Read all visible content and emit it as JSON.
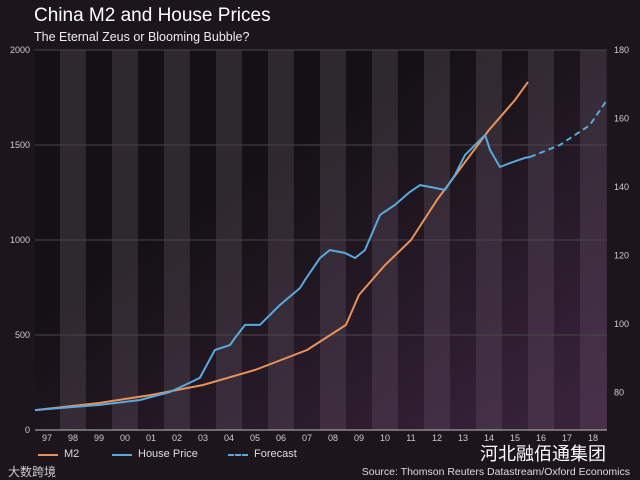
{
  "chart_data": {
    "type": "line",
    "title": "China M2 and House Prices",
    "subtitle": "The Eternal Zeus or Blooming Bubble?",
    "xlabel": "",
    "ylabel": "",
    "xlim": [
      1996.54,
      2018.54
    ],
    "ylim": [
      0,
      2000
    ],
    "y2lim": [
      69,
      180
    ],
    "x_ticks": [
      "97",
      "98",
      "99",
      "00",
      "01",
      "02",
      "03",
      "04",
      "05",
      "06",
      "07",
      "08",
      "09",
      "10",
      "11",
      "12",
      "13",
      "14",
      "15",
      "16",
      "17",
      "18"
    ],
    "y_ticks": [
      0,
      500,
      1000,
      1500,
      2000
    ],
    "y2_ticks": [
      80,
      100,
      120,
      140,
      160,
      180
    ],
    "grid": true,
    "legend_position": "bottom-left",
    "series": [
      {
        "name": "M2",
        "color": "#e8925a",
        "style": "solid",
        "x": [
          1996.54,
          1999,
          2001,
          2003,
          2005,
          2007,
          2008.5,
          2009,
          2010,
          2011,
          2012,
          2013,
          2014,
          2015,
          2015.5
        ],
        "y": [
          105,
          142,
          184,
          237,
          316,
          421,
          553,
          711,
          868,
          1000,
          1211,
          1395,
          1579,
          1737,
          1832
        ]
      },
      {
        "name": "House Price",
        "color": "#5aa9dc",
        "style": "solid",
        "x": [
          1996.54,
          1997.5,
          1999.04,
          2000.58,
          2001.73,
          2002.31,
          2002.88,
          2003.46,
          2004.04,
          2004.23,
          2004.62,
          2005.19,
          2005.96,
          2006.73,
          2006.92,
          2007.5,
          2007.88,
          2008.46,
          2008.85,
          2009.23,
          2009.81,
          2010.38,
          2010.96,
          2011.35,
          2011.92,
          2012.31,
          2012.69,
          2013.08,
          2013.65,
          2013.85,
          2014.04,
          2014.42,
          2014.81,
          2015.38,
          2015.58
        ],
        "y": [
          105,
          116,
          132,
          158,
          200,
          237,
          274,
          421,
          447,
          484,
          553,
          553,
          658,
          747,
          789,
          905,
          947,
          932,
          905,
          947,
          1132,
          1184,
          1253,
          1289,
          1274,
          1263,
          1342,
          1447,
          1526,
          1553,
          1474,
          1384,
          1405,
          1432,
          1437
        ]
      },
      {
        "name": "Forecast",
        "color": "#5aa9dc",
        "style": "dashed",
        "x": [
          2015.58,
          2016.73,
          2017.88,
          2018.54
        ],
        "y": [
          1437,
          1500,
          1605,
          1737
        ]
      }
    ],
    "source": "Source: Thomson Reuters Datastream/Oxford Economics"
  },
  "watermark": {
    "brand": "河北融佰通集团",
    "corner": "大数跨境"
  }
}
